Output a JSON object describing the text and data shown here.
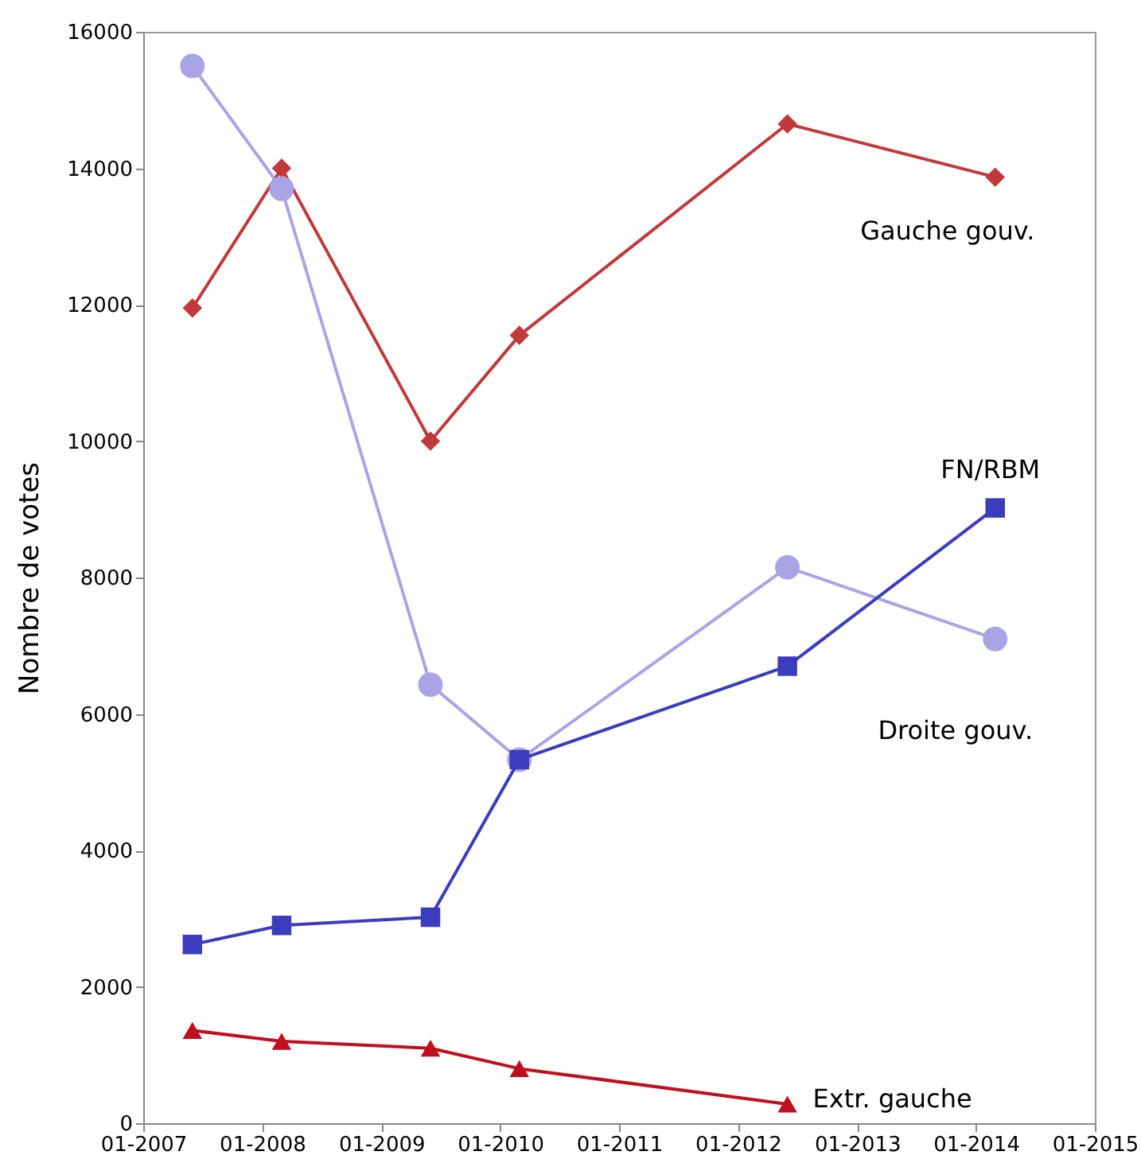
{
  "chart_data": {
    "type": "line",
    "ylabel": "Nombre de votes",
    "x": [
      "2007-06",
      "2008-03",
      "2009-06",
      "2010-03",
      "2012-06",
      "2014-03"
    ],
    "xlim": [
      "2007-01",
      "2015-01"
    ],
    "xticks": [
      {
        "value": "2007-01",
        "label": "01-2007"
      },
      {
        "value": "2008-01",
        "label": "01-2008"
      },
      {
        "value": "2009-01",
        "label": "01-2009"
      },
      {
        "value": "2010-01",
        "label": "01-2010"
      },
      {
        "value": "2011-01",
        "label": "01-2011"
      },
      {
        "value": "2012-01",
        "label": "01-2012"
      },
      {
        "value": "2013-01",
        "label": "01-2013"
      },
      {
        "value": "2014-01",
        "label": "01-2014"
      },
      {
        "value": "2015-01",
        "label": "01-2015"
      }
    ],
    "ylim": [
      0,
      16000
    ],
    "yticks": [
      0,
      2000,
      4000,
      6000,
      8000,
      10000,
      12000,
      14000,
      16000
    ],
    "grid": false,
    "legend": false,
    "line_style": "solid",
    "series": [
      {
        "name": "Gauche gouv.",
        "color": "#c0393b",
        "marker": "diamond",
        "values": [
          11950,
          14000,
          10000,
          11550,
          14650,
          13870
        ]
      },
      {
        "name": "Droite gouv.",
        "color": "#a9a4e6",
        "marker": "circle",
        "values": [
          15500,
          13700,
          6430,
          5330,
          8150,
          7100
        ]
      },
      {
        "name": "FN/RBM",
        "color": "#3c3cbe",
        "marker": "square",
        "values": [
          2620,
          2900,
          3020,
          5330,
          6700,
          9020
        ]
      },
      {
        "name": "Extr. gauche",
        "color": "#c0101e",
        "marker": "triangle",
        "values": [
          1360,
          1200,
          1100,
          800,
          280,
          null
        ]
      }
    ]
  }
}
